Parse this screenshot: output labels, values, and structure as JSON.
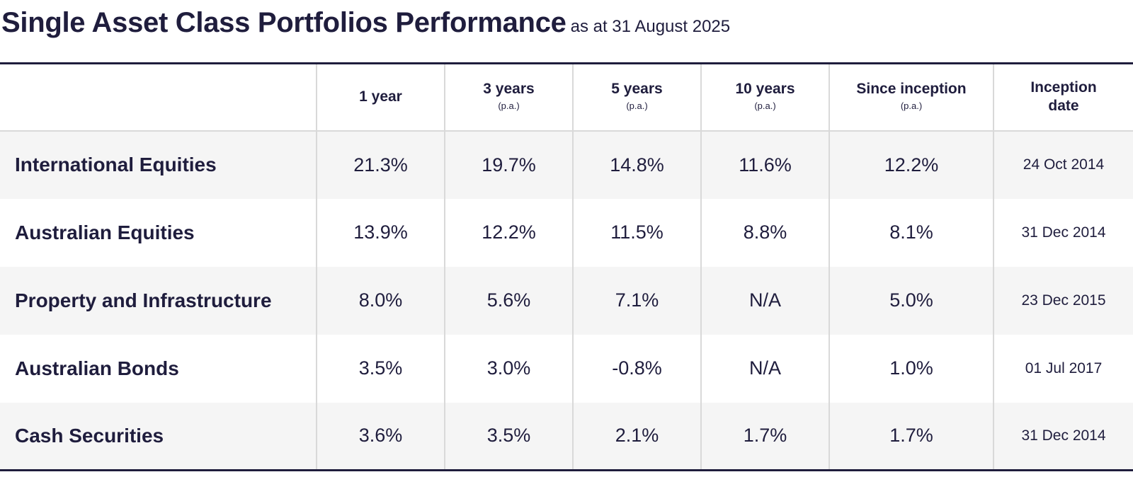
{
  "title": {
    "main": "Single Asset Class Portfolios Performance",
    "subtitle": "as at 31 August 2025"
  },
  "table": {
    "headers": [
      {
        "label": "",
        "note": ""
      },
      {
        "label": "1 year",
        "note": ""
      },
      {
        "label": "3 years",
        "note": "(p.a.)"
      },
      {
        "label": "5 years",
        "note": "(p.a.)"
      },
      {
        "label": "10 years",
        "note": "(p.a.)"
      },
      {
        "label": "Since inception",
        "note": "(p.a.)"
      },
      {
        "label": "Inception date",
        "note": ""
      }
    ],
    "rows": [
      {
        "name": "International Equities",
        "y1": "21.3%",
        "y3": "19.7%",
        "y5": "14.8%",
        "y10": "11.6%",
        "since": "12.2%",
        "date": "24 Oct 2014"
      },
      {
        "name": "Australian Equities",
        "y1": "13.9%",
        "y3": "12.2%",
        "y5": "11.5%",
        "y10": "8.8%",
        "since": "8.1%",
        "date": "31 Dec 2014"
      },
      {
        "name": "Property and Infrastructure",
        "y1": "8.0%",
        "y3": "5.6%",
        "y5": "7.1%",
        "y10": "N/A",
        "since": "5.0%",
        "date": "23 Dec 2015"
      },
      {
        "name": "Australian Bonds",
        "y1": "3.5%",
        "y3": "3.0%",
        "y5": "-0.8%",
        "y10": "N/A",
        "since": "1.0%",
        "date": "01 Jul 2017"
      },
      {
        "name": "Cash Securities",
        "y1": "3.6%",
        "y3": "3.5%",
        "y5": "2.1%",
        "y10": "1.7%",
        "since": "1.7%",
        "date": "31 Dec 2014"
      }
    ]
  },
  "colors": {
    "text": "#1f1d3d",
    "row_shade": "#f5f5f5",
    "grid": "#d9d9d9"
  }
}
